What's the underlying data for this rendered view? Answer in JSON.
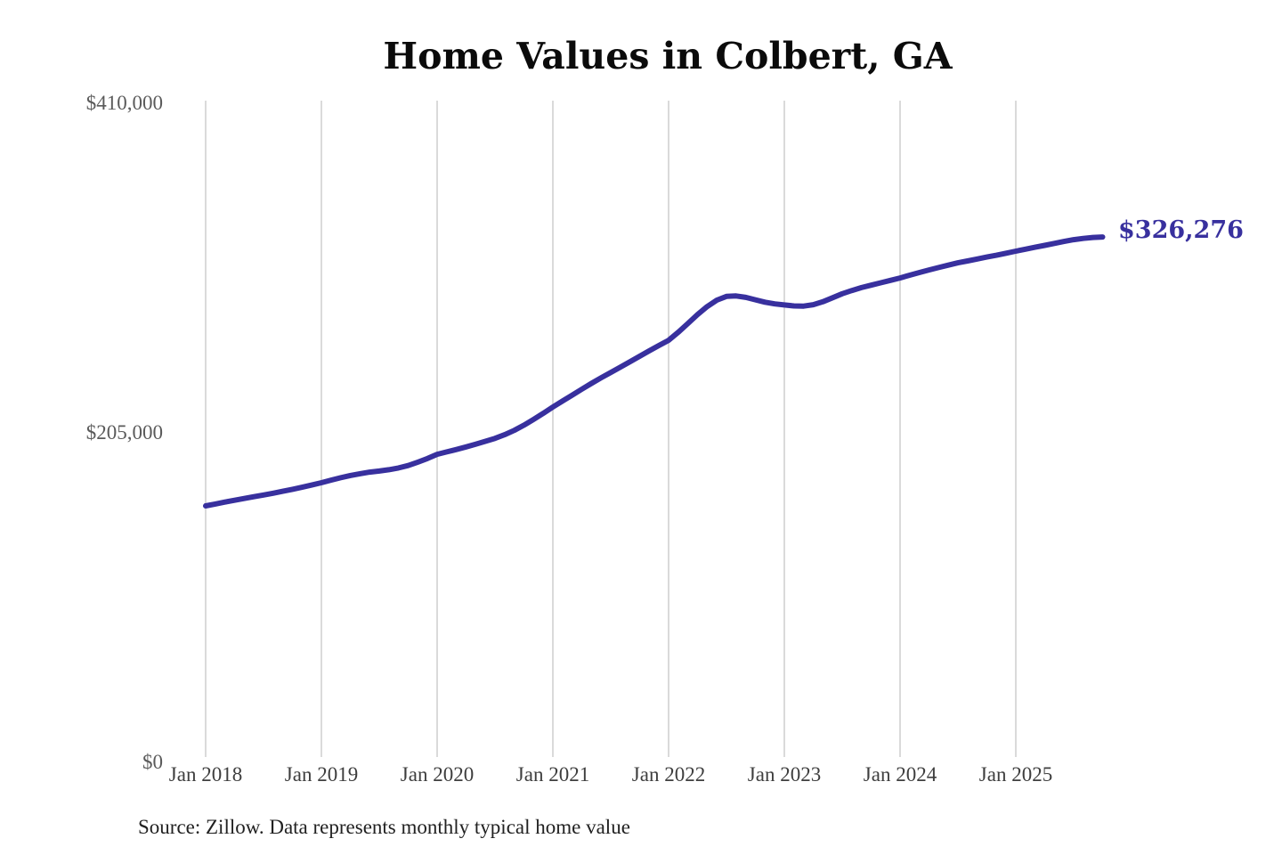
{
  "chart": {
    "title": "Home Values in Colbert, GA",
    "latest_value_label": "$326,276",
    "source_note": "Source: Zillow. Data represents monthly typical home value",
    "y_axis": {
      "tick_labels": [
        "$410,000",
        "$205,000",
        "$0"
      ]
    },
    "colors": {
      "line": "#38309e",
      "latest_value": "#38309e",
      "gridline": "#cbcbcb",
      "y_tick_text": "#5a5a5a",
      "x_tick_text": "#3e3e3e",
      "title_text": "#0b0b0b",
      "source_text": "#212121",
      "background": "#ffffff"
    }
  },
  "chart_data": {
    "type": "line",
    "title": "Home Values in Colbert, GA",
    "x_ticks": [
      "Jan 2018",
      "Jan 2019",
      "Jan 2020",
      "Jan 2021",
      "Jan 2022",
      "Jan 2023",
      "Jan 2024",
      "Jan 2025"
    ],
    "y_ticks": [
      {
        "label": "$0",
        "value": 0
      },
      {
        "label": "$205,000",
        "value": 205000
      },
      {
        "label": "$410,000",
        "value": 410000
      }
    ],
    "ylim": [
      0,
      410000
    ],
    "grid": "vertical-only",
    "legend": "none",
    "x_start": "2018-01",
    "x_freq": "monthly",
    "x_end": "2025-10",
    "series": [
      {
        "name": "Typical home value",
        "color": "#38309e",
        "values": [
          159000,
          160200,
          161400,
          162500,
          163600,
          164700,
          165800,
          166900,
          168100,
          169300,
          170600,
          172000,
          173400,
          175000,
          176500,
          177900,
          179000,
          180000,
          180700,
          181500,
          182600,
          184100,
          186200,
          188500,
          191100,
          192600,
          194100,
          195700,
          197400,
          199200,
          201000,
          203300,
          206000,
          209200,
          212800,
          216600,
          220500,
          224200,
          227900,
          231600,
          235200,
          238700,
          242000,
          245300,
          248700,
          252100,
          255500,
          258800,
          262000,
          267000,
          272500,
          278000,
          283000,
          287000,
          289300,
          289600,
          288700,
          287200,
          285700,
          284700,
          284000,
          283400,
          283300,
          284200,
          286000,
          288500,
          291000,
          293000,
          294800,
          296300,
          297800,
          299300,
          300800,
          302500,
          304200,
          305800,
          307300,
          308800,
          310200,
          311400,
          312600,
          313800,
          314900,
          316200,
          317500,
          318700,
          319900,
          321100,
          322300,
          323500,
          324600,
          325400,
          326000,
          326276
        ]
      }
    ],
    "annotation": {
      "text": "$326,276",
      "value": 326276,
      "position": "end-of-line"
    }
  }
}
